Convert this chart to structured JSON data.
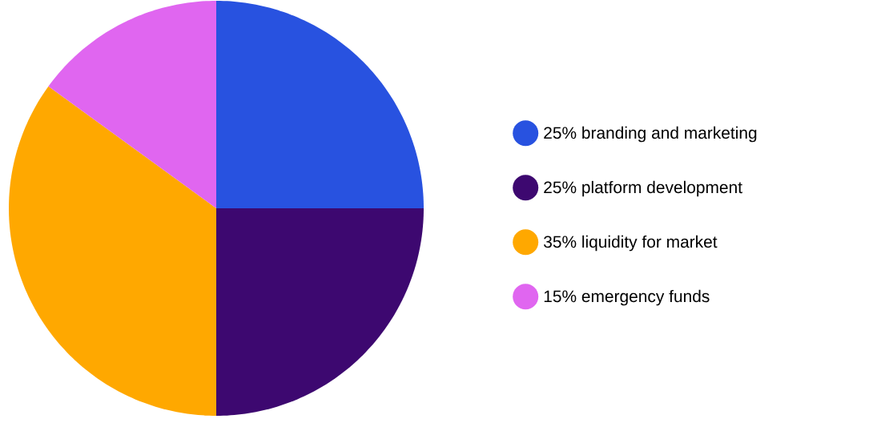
{
  "chart_data": {
    "type": "pie",
    "categories": [
      "25% branding and marketing",
      "25% platform development",
      "35% liquidity for market",
      "15% emergency funds"
    ],
    "values": [
      25,
      25,
      35,
      15
    ],
    "colors": [
      "#2852e0",
      "#3d0870",
      "#ffa800",
      "#e066f0"
    ],
    "legend": "right"
  }
}
